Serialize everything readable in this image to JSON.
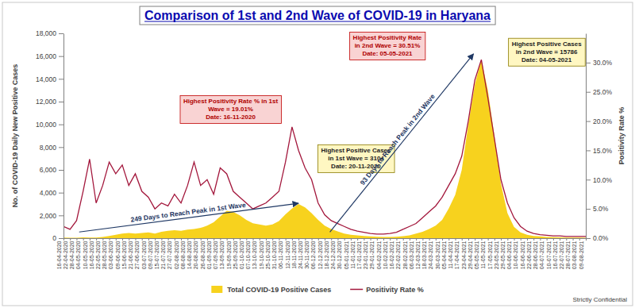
{
  "chart_data": {
    "type": "combo",
    "title": "Comparison of 1st and 2nd Wave of COVID-19 in Haryana",
    "ylabel": "No. of COVID-19 Daily New Positive Cases",
    "y2label": "Positivity Rate %",
    "x": [
      "16-04-2020",
      "22-04-2020",
      "28-04-2020",
      "04-05-2020",
      "10-05-2020",
      "16-05-2020",
      "22-05-2020",
      "28-05-2020",
      "03-06-2020",
      "09-06-2020",
      "15-06-2020",
      "21-06-2020",
      "27-06-2020",
      "03-07-2020",
      "09-07-2020",
      "15-07-2020",
      "21-07-2020",
      "27-07-2020",
      "02-08-2020",
      "08-08-2020",
      "14-08-2020",
      "20-08-2020",
      "26-08-2020",
      "01-09-2020",
      "07-09-2020",
      "13-09-2020",
      "19-09-2020",
      "25-09-2020",
      "01-10-2020",
      "07-10-2020",
      "13-10-2020",
      "19-10-2020",
      "25-10-2020",
      "31-10-2020",
      "06-11-2020",
      "12-11-2020",
      "18-11-2020",
      "24-11-2020",
      "30-11-2020",
      "06-12-2020",
      "12-12-2020",
      "18-12-2020",
      "24-12-2020",
      "30-12-2020",
      "05-01-2021",
      "11-01-2021",
      "17-01-2021",
      "23-01-2021",
      "29-01-2021",
      "04-02-2021",
      "10-02-2021",
      "16-02-2021",
      "22-02-2021",
      "28-02-2021",
      "06-03-2021",
      "12-03-2021",
      "18-03-2021",
      "24-03-2021",
      "30-03-2021",
      "05-04-2021",
      "11-04-2021",
      "17-04-2021",
      "23-04-2021",
      "29-04-2021",
      "05-05-2021",
      "11-05-2021",
      "17-05-2021",
      "23-05-2021",
      "29-05-2021",
      "04-06-2021",
      "10-06-2021",
      "16-06-2021",
      "22-06-2021",
      "28-06-2021",
      "04-07-2021",
      "10-07-2021",
      "16-07-2021",
      "22-07-2021",
      "28-07-2021",
      "03-08-2021",
      "09-08-2021"
    ],
    "series": [
      {
        "name": "Total COVID-19 Positive Cases",
        "type": "area",
        "color": "#f7d21e",
        "values": [
          50,
          30,
          40,
          70,
          60,
          60,
          100,
          200,
          300,
          400,
          450,
          400,
          450,
          500,
          400,
          550,
          650,
          700,
          650,
          750,
          800,
          900,
          1100,
          1400,
          1900,
          2400,
          2300,
          2000,
          1600,
          1300,
          1200,
          1100,
          1200,
          1500,
          2100,
          2600,
          3000,
          2700,
          2200,
          1600,
          1100,
          800,
          600,
          400,
          300,
          250,
          200,
          150,
          120,
          100,
          100,
          120,
          180,
          250,
          400,
          550,
          800,
          1100,
          1600,
          2600,
          3800,
          6000,
          10000,
          13500,
          15700,
          13000,
          9000,
          4800,
          2200,
          1000,
          500,
          300,
          200,
          150,
          100,
          80,
          70,
          60,
          50,
          50,
          40
        ]
      },
      {
        "name": "Positivity Rate %",
        "type": "line",
        "color": "#a3173c",
        "axis": "y2",
        "values": [
          2.0,
          1.5,
          3.0,
          8.0,
          13.5,
          6.0,
          9.0,
          13.0,
          11.0,
          12.5,
          9.0,
          11.0,
          8.0,
          7.0,
          5.0,
          6.0,
          5.5,
          7.5,
          6.0,
          9.0,
          13.0,
          9.0,
          10.0,
          7.5,
          12.0,
          11.0,
          8.0,
          7.0,
          6.0,
          5.0,
          5.5,
          6.0,
          7.0,
          8.0,
          13.0,
          19.0,
          15.0,
          12.0,
          10.0,
          6.0,
          4.0,
          3.0,
          2.5,
          2.0,
          1.5,
          1.2,
          1.0,
          0.8,
          0.7,
          0.7,
          0.8,
          1.0,
          1.5,
          2.0,
          2.5,
          3.5,
          4.5,
          5.5,
          7.0,
          9.0,
          11.0,
          14.0,
          20.0,
          27.0,
          30.5,
          24.0,
          17.0,
          10.0,
          6.0,
          3.5,
          2.0,
          1.2,
          0.8,
          0.6,
          0.5,
          0.4,
          0.4,
          0.3,
          0.3,
          0.3,
          0.3
        ]
      }
    ],
    "ylim": [
      0,
      18000
    ],
    "yticks": [
      0,
      {
        "value": 2000,
        "label": "2,000"
      },
      {
        "value": 4000,
        "label": "4,000"
      },
      {
        "value": 6000,
        "label": "6,000"
      },
      {
        "value": 8000,
        "label": "8,000"
      },
      {
        "value": 10000,
        "label": "10,000"
      },
      {
        "value": 12000,
        "label": "12,000"
      },
      {
        "value": 14000,
        "label": "14,000"
      },
      {
        "value": 16000,
        "label": "16,000"
      },
      {
        "value": 18000,
        "label": "18,000"
      }
    ],
    "y2lim": [
      0,
      35
    ],
    "y2ticks": [
      {
        "value": 0,
        "label": "0.0%"
      },
      {
        "value": 5,
        "label": "5.0%"
      },
      {
        "value": 10,
        "label": "10.0%"
      },
      {
        "value": 15,
        "label": "15.0%"
      },
      {
        "value": 20,
        "label": "20.0%"
      },
      {
        "value": 25,
        "label": "25.0%"
      },
      {
        "value": 30,
        "label": "30.0%"
      }
    ],
    "grid": false,
    "legend": "bottom",
    "annotations": [
      {
        "text": [
          "Highest Positivity Rate % in 1st",
          "Wave = 19.01%",
          "Date: 16-11-2020"
        ]
      },
      {
        "text": [
          "Highest Positive Cases",
          "in 1st Wave = 3104",
          "Date: 20-11-2020"
        ]
      },
      {
        "text": [
          "Highest Positivity Rate",
          "in 2nd Wave = 30.51%",
          "Date: 05-05-2021"
        ]
      },
      {
        "text": [
          "Highest Positive Cases",
          "in 2nd Wave = 15786",
          "Date: 04-05-2021"
        ]
      },
      {
        "text": [
          "249 Days to Reach Peak in 1st Wave"
        ]
      },
      {
        "text": [
          "93 Days to Reach Peak in 2nd Wave"
        ]
      }
    ]
  },
  "footer": "Strictly Confidential"
}
